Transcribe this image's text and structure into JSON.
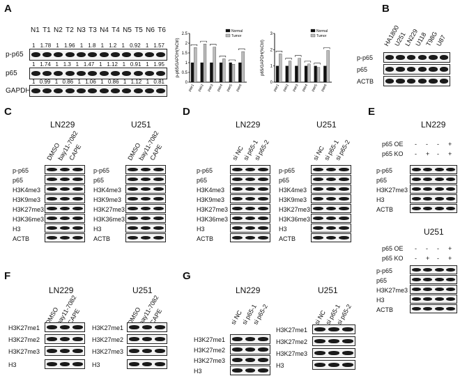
{
  "panels": {
    "A": {
      "label": "A",
      "lanes": [
        "N1",
        "T1",
        "N2",
        "T2",
        "N3",
        "T3",
        "N4",
        "T4",
        "N5",
        "T5",
        "N6",
        "T6"
      ],
      "rows": [
        {
          "name": "p-p65",
          "values_above": [
            "1",
            "1.78",
            "1",
            "1.96",
            "1",
            "1.8",
            "1",
            "1.2",
            "1",
            "0.92",
            "1",
            "1.57"
          ]
        },
        {
          "name": "p65",
          "values_above": [
            "1",
            "1.74",
            "1",
            "1.3",
            "1",
            "1.47",
            "1",
            "1.12",
            "1",
            "0.91",
            "1",
            "1.95"
          ]
        },
        {
          "name": "GAPDH",
          "values_above": [
            "1",
            "0.99",
            "1",
            "0.86",
            "1",
            "1.06",
            "1",
            "0.86",
            "1",
            "1.12",
            "1",
            "0.81"
          ]
        }
      ]
    },
    "B": {
      "label": "B",
      "lanes": [
        "HA1800",
        "U251",
        "LN229",
        "U118",
        "T98G",
        "U87"
      ],
      "rows": [
        "p-p65",
        "p65",
        "ACTB"
      ]
    },
    "C": {
      "label": "C",
      "blocks": [
        {
          "title": "LN229",
          "lanes": [
            "DMSO",
            "bay11-7082",
            "CAPE"
          ],
          "rows": [
            "p-p65",
            "p65",
            "H3K4me3",
            "H3K9me3",
            "H3K27me3",
            "H3K36me3",
            "H3",
            "ACTB"
          ]
        },
        {
          "title": "U251",
          "lanes": [
            "DMSO",
            "bay11-7082",
            "CAPE"
          ],
          "rows": [
            "p-p65",
            "p65",
            "H3K4me3",
            "H3K9me3",
            "H3K27me3",
            "H3K36me3",
            "H3",
            "ACTB"
          ]
        }
      ]
    },
    "D": {
      "label": "D",
      "blocks": [
        {
          "title": "LN229",
          "lanes": [
            "si NC",
            "si p65-1",
            "si p65-2"
          ],
          "rows": [
            "p-p65",
            "p65",
            "H3K4me3",
            "H3K9me3",
            "H3K27me3",
            "H3K36me3",
            "H3",
            "ACTB"
          ]
        },
        {
          "title": "U251",
          "lanes": [
            "si NC",
            "si p65-1",
            "si p65-2"
          ],
          "rows": [
            "p-p65",
            "p65",
            "H3K4me3",
            "H3K9me3",
            "H3K27me3",
            "H3K36me3",
            "H3",
            "ACTB"
          ]
        }
      ]
    },
    "E": {
      "label": "E",
      "blocks": [
        {
          "title": "LN229",
          "conditions": [
            {
              "name": "p65 OE",
              "marks": [
                "-",
                "-",
                "-",
                "+"
              ]
            },
            {
              "name": "p65 KO",
              "marks": [
                "-",
                "+",
                "-",
                "+"
              ]
            }
          ],
          "rows": [
            "p-p65",
            "p65",
            "H3K27me3",
            "H3",
            "ACTB"
          ]
        },
        {
          "title": "U251",
          "conditions": [
            {
              "name": "p65 OE",
              "marks": [
                "-",
                "-",
                "-",
                "+"
              ]
            },
            {
              "name": "p65 KO",
              "marks": [
                "-",
                "+",
                "-",
                "+"
              ]
            }
          ],
          "rows": [
            "p-p65",
            "p65",
            "H3K27me3",
            "H3",
            "ACTB"
          ]
        }
      ]
    },
    "F": {
      "label": "F",
      "blocks": [
        {
          "title": "LN229",
          "lanes": [
            "DMSO",
            "bay11-7082",
            "CAPE"
          ],
          "rows": [
            "H3K27me1",
            "H3K27me2",
            "H3K27me3",
            "H3"
          ]
        },
        {
          "title": "U251",
          "lanes": [
            "DMSO",
            "bay11-7082",
            "CAPE"
          ],
          "rows": [
            "H3K27me1",
            "H3K27me2",
            "H3K27me3",
            "H3"
          ]
        }
      ]
    },
    "G": {
      "label": "G",
      "blocks": [
        {
          "title": "LN229",
          "lanes": [
            "si NC",
            "si p65-1",
            "si p65-2"
          ],
          "rows": [
            "H3K27me1",
            "H3K27me2",
            "H3K27me3",
            "H3"
          ]
        },
        {
          "title": "U251",
          "lanes": [
            "si NC",
            "si p65-1",
            "si p65-2"
          ],
          "rows": [
            "H3K27me1",
            "H3K27me2",
            "H3K27me3",
            "H3"
          ]
        }
      ]
    }
  },
  "chart_data": [
    {
      "type": "bar",
      "categories": [
        "pair1",
        "pair2",
        "pair3",
        "pair4",
        "pair5",
        "pair6"
      ],
      "ylabel": "p-p65/GAPDH(%Ctrl)",
      "ylim": [
        0,
        2.5
      ],
      "yticks": [
        "0",
        "0.5",
        "1",
        "1.5",
        "2",
        "2.5"
      ],
      "legend": "top-right",
      "series": [
        {
          "name": "Normal",
          "color": "#111111",
          "values": [
            1,
            1,
            1,
            1,
            1,
            1
          ]
        },
        {
          "name": "Tumor",
          "color": "#bbbbbb",
          "values": [
            1.78,
            1.96,
            1.8,
            1.2,
            0.92,
            1.57
          ]
        }
      ]
    },
    {
      "type": "bar",
      "categories": [
        "pair1",
        "pair2",
        "pair3",
        "pair4",
        "pair5",
        "pair6"
      ],
      "ylabel": "p65/GAPDH(%Ctrl)",
      "ylim": [
        0,
        3
      ],
      "yticks": [
        "0",
        "1",
        "2",
        "3"
      ],
      "legend": "top-right",
      "series": [
        {
          "name": "Normal",
          "color": "#111111",
          "values": [
            1,
            1,
            1,
            1,
            1,
            1
          ]
        },
        {
          "name": "Tumor",
          "color": "#bbbbbb",
          "values": [
            1.74,
            1.3,
            1.47,
            1.12,
            0.91,
            1.95
          ]
        }
      ]
    }
  ]
}
